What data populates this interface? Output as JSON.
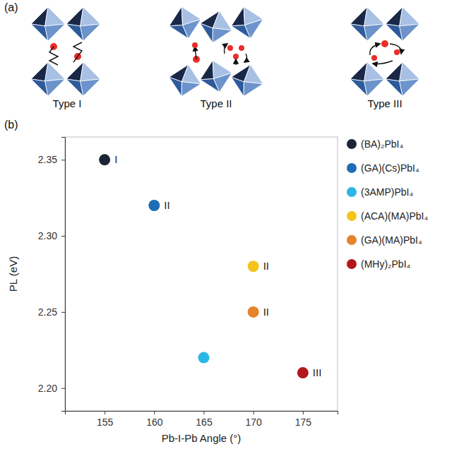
{
  "chart_data": {
    "type": "scatter",
    "x_label": "Pb-I-Pb Angle (°)",
    "y_label": "PL (eV)",
    "xlim": [
      151,
      178.5
    ],
    "ylim": [
      2.185,
      2.365
    ],
    "xticks": [
      155,
      160,
      165,
      170,
      175
    ],
    "yticks": [
      {
        "value": 2.2,
        "label": "2.20"
      },
      2.25,
      {
        "value": 2.3,
        "label": "2.30"
      },
      2.35
    ],
    "marker": "circle",
    "legend": "right",
    "grid": false,
    "series": [
      {
        "name": "(BA)₂PbI₄",
        "color": "#1c2535",
        "x": [
          155
        ],
        "values": [
          2.35
        ]
      },
      {
        "name": "(GA)(Cs)PbI₄",
        "color": "#1f6db3",
        "x": [
          160
        ],
        "values": [
          2.32
        ]
      },
      {
        "name": "(3AMP)PbI₄",
        "color": "#2bb6e6",
        "x": [
          165
        ],
        "values": [
          2.22
        ]
      },
      {
        "name": "(ACA)(MA)PbI₄",
        "color": "#f4c41c",
        "x": [
          170
        ],
        "values": [
          2.28
        ]
      },
      {
        "name": "(GA)(MA)PbI₄",
        "color": "#e6832b",
        "x": [
          170
        ],
        "values": [
          2.25
        ]
      },
      {
        "name": "(MHy)₂PbI₄",
        "color": "#b3161c",
        "x": [
          175
        ],
        "values": [
          2.21
        ]
      }
    ],
    "annotations": [
      {
        "text": "I",
        "x": 155,
        "y": 2.35
      },
      {
        "text": "II",
        "x": 160,
        "y": 2.32
      },
      {
        "text": "II",
        "x": 170,
        "y": 2.28
      },
      {
        "text": "II",
        "x": 170,
        "y": 2.25
      },
      {
        "text": "III",
        "x": 175,
        "y": 2.21
      }
    ]
  },
  "panels": {
    "labels": [
      "(a)",
      "(b)"
    ],
    "diagram": {
      "types": [
        "Type I",
        "Type II",
        "Type III"
      ]
    }
  }
}
